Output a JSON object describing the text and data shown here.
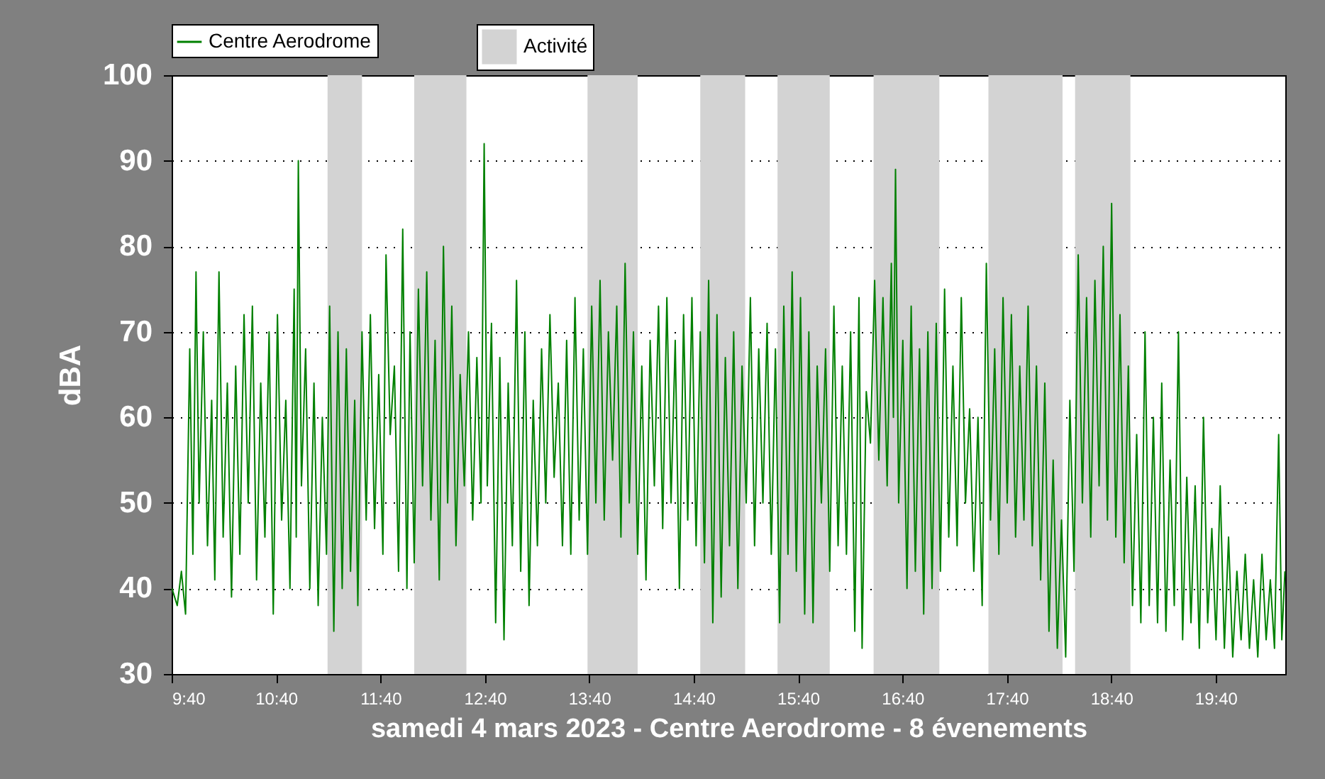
{
  "chart_data": {
    "type": "line",
    "xlabel": "samedi 4 mars 2023 - Centre Aerodrome - 8 évenements",
    "ylabel": "dBA",
    "xlim": [
      9.6667,
      20.3333
    ],
    "ylim": [
      30,
      100
    ],
    "xticks": [
      {
        "value": 9.6667,
        "label": "9:40"
      },
      {
        "value": 10.6667,
        "label": "10:40"
      },
      {
        "value": 11.6667,
        "label": "11:40"
      },
      {
        "value": 12.6667,
        "label": "12:40"
      },
      {
        "value": 13.6667,
        "label": "13:40"
      },
      {
        "value": 14.6667,
        "label": "14:40"
      },
      {
        "value": 15.6667,
        "label": "15:40"
      },
      {
        "value": 16.6667,
        "label": "16:40"
      },
      {
        "value": 17.6667,
        "label": "17:40"
      },
      {
        "value": 18.6667,
        "label": "18:40"
      },
      {
        "value": 19.6667,
        "label": "19:40"
      }
    ],
    "yticks": [
      30,
      40,
      50,
      60,
      70,
      80,
      90,
      100
    ],
    "grid": "y",
    "legend": "top left",
    "bands": [
      {
        "axis": "x",
        "from": 11.16,
        "to": 11.49,
        "label": "Activité",
        "color": "#d3d3d3"
      },
      {
        "axis": "x",
        "from": 11.99,
        "to": 12.49,
        "color": "#d3d3d3"
      },
      {
        "axis": "x",
        "from": 13.65,
        "to": 14.13,
        "color": "#d3d3d3"
      },
      {
        "axis": "x",
        "from": 14.73,
        "to": 15.16,
        "color": "#d3d3d3"
      },
      {
        "axis": "x",
        "from": 15.47,
        "to": 15.97,
        "color": "#d3d3d3"
      },
      {
        "axis": "x",
        "from": 16.39,
        "to": 17.02,
        "color": "#d3d3d3"
      },
      {
        "axis": "x",
        "from": 17.49,
        "to": 18.2,
        "color": "#d3d3d3"
      },
      {
        "axis": "x",
        "from": 18.32,
        "to": 18.85,
        "color": "#d3d3d3"
      }
    ],
    "x": [
      9.67,
      9.72,
      9.76,
      9.8,
      9.84,
      9.87,
      9.9,
      9.93,
      9.97,
      10.01,
      10.05,
      10.08,
      10.12,
      10.16,
      10.2,
      10.24,
      10.28,
      10.32,
      10.36,
      10.4,
      10.44,
      10.48,
      10.52,
      10.56,
      10.6,
      10.64,
      10.68,
      10.72,
      10.76,
      10.8,
      10.84,
      10.86,
      10.88,
      10.91,
      10.95,
      10.99,
      11.03,
      11.07,
      11.11,
      11.15,
      11.18,
      11.22,
      11.26,
      11.3,
      11.34,
      11.38,
      11.42,
      11.45,
      11.49,
      11.53,
      11.57,
      11.61,
      11.65,
      11.69,
      11.72,
      11.76,
      11.8,
      11.84,
      11.88,
      11.92,
      11.95,
      11.99,
      12.03,
      12.07,
      12.11,
      12.15,
      12.19,
      12.23,
      12.27,
      12.31,
      12.35,
      12.39,
      12.43,
      12.47,
      12.51,
      12.55,
      12.59,
      12.63,
      12.66,
      12.69,
      12.73,
      12.77,
      12.81,
      12.85,
      12.89,
      12.93,
      12.97,
      13.01,
      13.05,
      13.09,
      13.13,
      13.17,
      13.21,
      13.25,
      13.29,
      13.33,
      13.37,
      13.41,
      13.45,
      13.49,
      13.53,
      13.57,
      13.61,
      13.65,
      13.69,
      13.73,
      13.77,
      13.81,
      13.85,
      13.89,
      13.93,
      13.97,
      14.01,
      14.05,
      14.09,
      14.13,
      14.17,
      14.21,
      14.25,
      14.29,
      14.33,
      14.37,
      14.41,
      14.45,
      14.49,
      14.53,
      14.57,
      14.61,
      14.65,
      14.69,
      14.73,
      14.77,
      14.81,
      14.85,
      14.89,
      14.93,
      14.97,
      15.01,
      15.05,
      15.09,
      15.13,
      15.17,
      15.21,
      15.25,
      15.29,
      15.33,
      15.37,
      15.41,
      15.45,
      15.49,
      15.53,
      15.57,
      15.61,
      15.65,
      15.69,
      15.73,
      15.77,
      15.81,
      15.85,
      15.89,
      15.93,
      15.97,
      16.01,
      16.05,
      16.09,
      16.13,
      16.17,
      16.21,
      16.25,
      16.28,
      16.32,
      16.36,
      16.4,
      16.44,
      16.48,
      16.52,
      16.56,
      16.58,
      16.6,
      16.63,
      16.67,
      16.71,
      16.75,
      16.79,
      16.83,
      16.87,
      16.91,
      16.95,
      16.99,
      17.03,
      17.07,
      17.11,
      17.15,
      17.19,
      17.23,
      17.27,
      17.31,
      17.35,
      17.39,
      17.43,
      17.47,
      17.51,
      17.55,
      17.59,
      17.63,
      17.67,
      17.71,
      17.75,
      17.79,
      17.83,
      17.87,
      17.91,
      17.95,
      17.99,
      18.03,
      18.07,
      18.11,
      18.15,
      18.19,
      18.23,
      18.27,
      18.31,
      18.35,
      18.39,
      18.43,
      18.47,
      18.51,
      18.55,
      18.59,
      18.63,
      18.67,
      18.71,
      18.75,
      18.79,
      18.83,
      18.87,
      18.91,
      18.95,
      18.99,
      19.03,
      19.07,
      19.11,
      19.15,
      19.19,
      19.23,
      19.27,
      19.31,
      19.35,
      19.39,
      19.43,
      19.47,
      19.51,
      19.55,
      19.59,
      19.63,
      19.67,
      19.71,
      19.75,
      19.79,
      19.83,
      19.87,
      19.91,
      19.95,
      19.99,
      20.03,
      20.07,
      20.11,
      20.15,
      20.19,
      20.23,
      20.27,
      20.3,
      20.33
    ],
    "series": [
      {
        "name": "Centre Aerodrome",
        "color": "#008000",
        "values": [
          40,
          38,
          42,
          37,
          68,
          44,
          77,
          50,
          70,
          45,
          62,
          41,
          77,
          46,
          64,
          39,
          66,
          44,
          72,
          50,
          73,
          41,
          64,
          46,
          70,
          37,
          72,
          48,
          62,
          40,
          75,
          46,
          90,
          52,
          68,
          40,
          64,
          38,
          60,
          44,
          73,
          35,
          70,
          40,
          68,
          42,
          62,
          38,
          70,
          48,
          72,
          47,
          65,
          44,
          79,
          58,
          66,
          42,
          82,
          40,
          70,
          43,
          75,
          52,
          77,
          48,
          69,
          41,
          80,
          50,
          73,
          45,
          65,
          52,
          70,
          48,
          67,
          50,
          92,
          52,
          71,
          36,
          67,
          34,
          64,
          45,
          76,
          42,
          70,
          38,
          62,
          45,
          68,
          50,
          72,
          53,
          64,
          45,
          69,
          44,
          74,
          48,
          68,
          44,
          73,
          50,
          76,
          48,
          70,
          55,
          73,
          46,
          78,
          50,
          70,
          44,
          66,
          41,
          69,
          52,
          73,
          47,
          74,
          50,
          69,
          40,
          72,
          48,
          74,
          45,
          70,
          43,
          76,
          36,
          72,
          39,
          67,
          45,
          70,
          40,
          66,
          50,
          74,
          45,
          68,
          50,
          71,
          44,
          68,
          36,
          73,
          44,
          77,
          42,
          74,
          37,
          70,
          36,
          66,
          50,
          68,
          42,
          73,
          45,
          66,
          44,
          70,
          35,
          74,
          33,
          63,
          57,
          76,
          55,
          74,
          52,
          78,
          60,
          89,
          50,
          69,
          40,
          73,
          42,
          68,
          37,
          70,
          40,
          71,
          42,
          75,
          46,
          66,
          45,
          74,
          50,
          61,
          42,
          60,
          38,
          78,
          48,
          68,
          44,
          74,
          50,
          72,
          46,
          66,
          48,
          73,
          45,
          66,
          41,
          64,
          35,
          55,
          33,
          48,
          32,
          62,
          42,
          79,
          50,
          74,
          46,
          76,
          52,
          80,
          48,
          85,
          46,
          72,
          43,
          66,
          38,
          58,
          36,
          70,
          38,
          60,
          36,
          64,
          35,
          55,
          38,
          70,
          34,
          53,
          36,
          52,
          33,
          60,
          36,
          47,
          34,
          52,
          33,
          46,
          32,
          42,
          34,
          44,
          33,
          41,
          32,
          44,
          34,
          41,
          33,
          58,
          34,
          42
        ]
      }
    ]
  }
}
